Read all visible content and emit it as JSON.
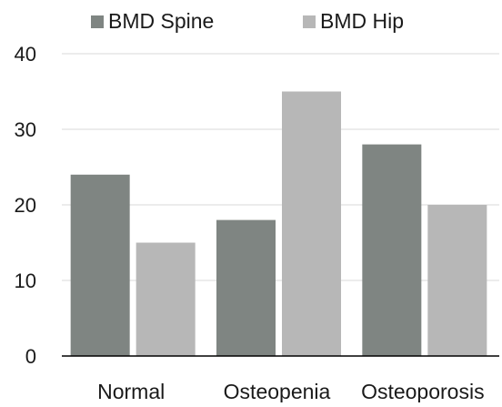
{
  "chart_data": {
    "type": "bar",
    "categories": [
      "Normal",
      "Osteopenia",
      "Osteoporosis"
    ],
    "series": [
      {
        "name": "BMD Spine",
        "values": [
          24,
          18,
          28
        ],
        "color": "#7f8582"
      },
      {
        "name": "BMD Hip",
        "values": [
          15,
          35,
          20
        ],
        "color": "#b7b7b7"
      }
    ],
    "ylim": [
      0,
      40
    ],
    "yticks": [
      0,
      10,
      20,
      30,
      40
    ],
    "grid": true,
    "legend_position": "top",
    "gridline_color": "#d9d9d9",
    "axis_color": "#000000"
  }
}
